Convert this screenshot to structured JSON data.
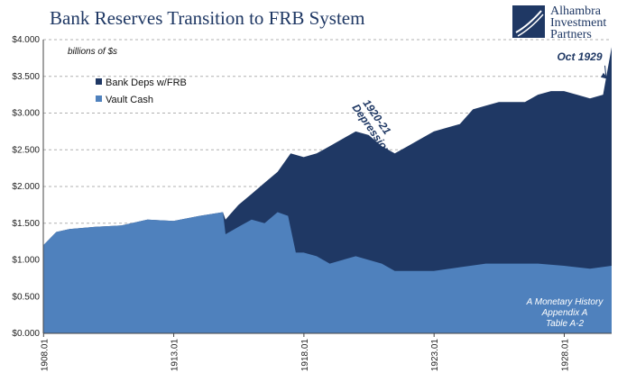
{
  "title": "Bank Reserves Transition to FRB System",
  "logo": {
    "line1": "Alhambra",
    "line2": "Investment",
    "line3": "Partners"
  },
  "chart_data": {
    "type": "area",
    "title": "Bank Reserves Transition to FRB System",
    "units": "billions of $s",
    "y_ticks": [
      "$0.000",
      "$0.500",
      "$1.000",
      "$1.500",
      "$2.000",
      "$2.500",
      "$3.000",
      "$3.500",
      "$4.000"
    ],
    "ylim": [
      0,
      4
    ],
    "x_ticks": [
      "1908.01",
      "1913.01",
      "1918.01",
      "1923.01",
      "1928.01"
    ],
    "xlim": [
      1908.0,
      1929.83
    ],
    "grid": true,
    "legend_position": "top-left",
    "series": [
      {
        "name": "Bank Deps w/FRB",
        "color": "#1f3864",
        "points": [
          [
            1908.0,
            1.2
          ],
          [
            1908.5,
            1.38
          ],
          [
            1909.0,
            1.42
          ],
          [
            1910.0,
            1.45
          ],
          [
            1911.0,
            1.47
          ],
          [
            1912.0,
            1.55
          ],
          [
            1913.0,
            1.53
          ],
          [
            1914.0,
            1.6
          ],
          [
            1914.9,
            1.65
          ],
          [
            1915.0,
            1.55
          ],
          [
            1915.5,
            1.75
          ],
          [
            1916.0,
            1.9
          ],
          [
            1916.5,
            2.05
          ],
          [
            1917.0,
            2.2
          ],
          [
            1917.5,
            2.45
          ],
          [
            1918.0,
            2.4
          ],
          [
            1918.5,
            2.45
          ],
          [
            1919.0,
            2.55
          ],
          [
            1919.5,
            2.65
          ],
          [
            1920.0,
            2.75
          ],
          [
            1920.5,
            2.7
          ],
          [
            1921.0,
            2.55
          ],
          [
            1921.5,
            2.45
          ],
          [
            1922.0,
            2.55
          ],
          [
            1922.5,
            2.65
          ],
          [
            1923.0,
            2.75
          ],
          [
            1923.5,
            2.8
          ],
          [
            1924.0,
            2.85
          ],
          [
            1924.5,
            3.05
          ],
          [
            1925.0,
            3.1
          ],
          [
            1925.5,
            3.15
          ],
          [
            1926.0,
            3.15
          ],
          [
            1926.5,
            3.15
          ],
          [
            1927.0,
            3.25
          ],
          [
            1927.5,
            3.3
          ],
          [
            1928.0,
            3.3
          ],
          [
            1928.5,
            3.25
          ],
          [
            1929.0,
            3.2
          ],
          [
            1929.5,
            3.25
          ],
          [
            1929.83,
            3.9
          ]
        ]
      },
      {
        "name": "Vault Cash",
        "color": "#4f81bd",
        "points": [
          [
            1908.0,
            1.2
          ],
          [
            1908.5,
            1.38
          ],
          [
            1909.0,
            1.42
          ],
          [
            1910.0,
            1.45
          ],
          [
            1911.0,
            1.47
          ],
          [
            1912.0,
            1.55
          ],
          [
            1913.0,
            1.53
          ],
          [
            1914.0,
            1.6
          ],
          [
            1914.9,
            1.65
          ],
          [
            1915.0,
            1.35
          ],
          [
            1915.5,
            1.45
          ],
          [
            1916.0,
            1.55
          ],
          [
            1916.5,
            1.5
          ],
          [
            1917.0,
            1.65
          ],
          [
            1917.4,
            1.6
          ],
          [
            1917.7,
            1.1
          ],
          [
            1918.0,
            1.1
          ],
          [
            1918.5,
            1.05
          ],
          [
            1919.0,
            0.95
          ],
          [
            1919.5,
            1.0
          ],
          [
            1920.0,
            1.05
          ],
          [
            1920.5,
            1.0
          ],
          [
            1921.0,
            0.95
          ],
          [
            1921.5,
            0.85
          ],
          [
            1922.0,
            0.85
          ],
          [
            1922.5,
            0.85
          ],
          [
            1923.0,
            0.85
          ],
          [
            1924.0,
            0.9
          ],
          [
            1925.0,
            0.95
          ],
          [
            1926.0,
            0.95
          ],
          [
            1927.0,
            0.95
          ],
          [
            1928.0,
            0.92
          ],
          [
            1929.0,
            0.88
          ],
          [
            1929.83,
            0.92
          ]
        ]
      }
    ],
    "annotations": [
      {
        "text": "1920-21",
        "x": 1920.7,
        "y": 2.92
      },
      {
        "text": "Depression",
        "x": 1920.5,
        "y": 2.75
      },
      {
        "text": "Oct 1929",
        "x": 1928.6,
        "y": 3.72
      }
    ],
    "source_note": [
      "A Monetary History",
      "Appendix A",
      "Table A-2"
    ]
  }
}
